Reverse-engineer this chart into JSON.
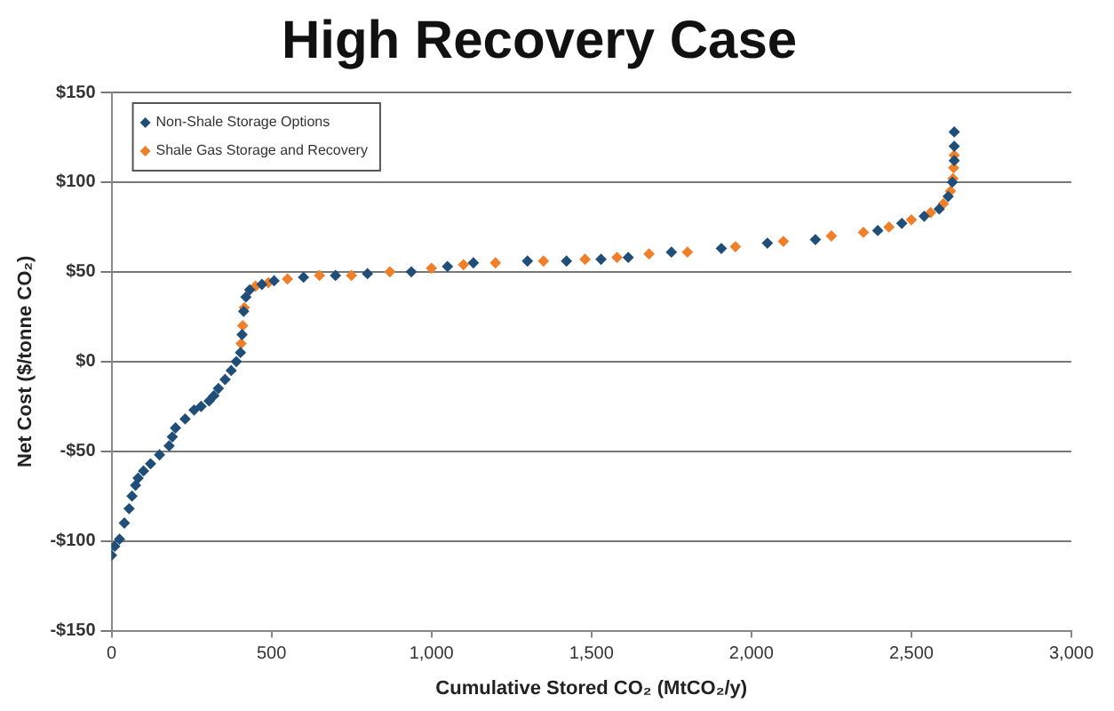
{
  "chart_data": {
    "type": "scatter",
    "title": "High Recovery Case",
    "xlabel": "Cumulative Stored CO₂ (MtCO₂/y)",
    "ylabel": "Net Cost ($/tonne CO₂)",
    "xlim": [
      0,
      3000
    ],
    "xticks": [
      0,
      500,
      {
        "value": 1000,
        "label": "1,000"
      },
      {
        "value": 1500,
        "label": "1,500"
      },
      {
        "value": 2000,
        "label": "2,000"
      },
      {
        "value": 2500,
        "label": "2,500"
      },
      {
        "value": 3000,
        "label": "3,000"
      }
    ],
    "ylim": [
      -150,
      150
    ],
    "yticks": [
      {
        "value": -150,
        "label": "-$150"
      },
      {
        "value": -100,
        "label": "-$100"
      },
      {
        "value": -50,
        "label": "-$50"
      },
      {
        "value": 0,
        "label": "$0"
      },
      {
        "value": 50,
        "label": "$50"
      },
      {
        "value": 100,
        "label": "$100"
      },
      {
        "value": 150,
        "label": "$150"
      }
    ],
    "grid": "y",
    "legend": "top left",
    "marker": "diamond",
    "series": [
      {
        "name": "Non-Shale Storage Options",
        "color": "#1f4e79",
        "x": [
          0,
          10,
          25,
          40,
          55,
          64,
          75,
          83,
          100,
          122,
          150,
          180,
          190,
          200,
          230,
          258,
          280,
          305,
          320,
          334,
          355,
          374,
          390,
          403,
          408,
          413,
          420,
          432,
          470,
          508,
          600,
          700,
          800,
          937,
          1050,
          1131,
          1300,
          1422,
          1530,
          1615,
          1750,
          1906,
          2050,
          2200,
          2395,
          2470,
          2540,
          2587,
          2615,
          2628,
          2634,
          2634,
          2634
        ],
        "values": [
          -108,
          -103,
          -99,
          -90,
          -82,
          -75,
          -69,
          -65,
          -61,
          -57,
          -52,
          -47,
          -42,
          -37,
          -32,
          -27,
          -25,
          -22,
          -19,
          -15,
          -10,
          -5,
          0,
          5,
          15,
          28,
          36,
          40,
          43,
          45,
          47,
          48,
          49,
          50,
          53,
          55,
          56,
          56,
          57,
          58,
          61,
          63,
          66,
          68,
          73,
          77,
          81,
          85,
          92,
          100,
          112,
          120,
          128
        ]
      },
      {
        "name": "Shale Gas Storage and Recovery",
        "color": "#f07f2a",
        "x": [
          405,
          410,
          415,
          450,
          490,
          550,
          650,
          750,
          870,
          1000,
          1100,
          1200,
          1350,
          1480,
          1580,
          1680,
          1800,
          1950,
          2100,
          2250,
          2350,
          2430,
          2500,
          2560,
          2600,
          2622,
          2630,
          2632,
          2634
        ],
        "values": [
          10,
          20,
          30,
          42,
          44,
          46,
          48,
          48,
          50,
          52,
          54,
          55,
          56,
          57,
          58,
          60,
          61,
          64,
          67,
          70,
          72,
          75,
          79,
          83,
          88,
          95,
          102,
          108,
          115
        ]
      }
    ]
  }
}
